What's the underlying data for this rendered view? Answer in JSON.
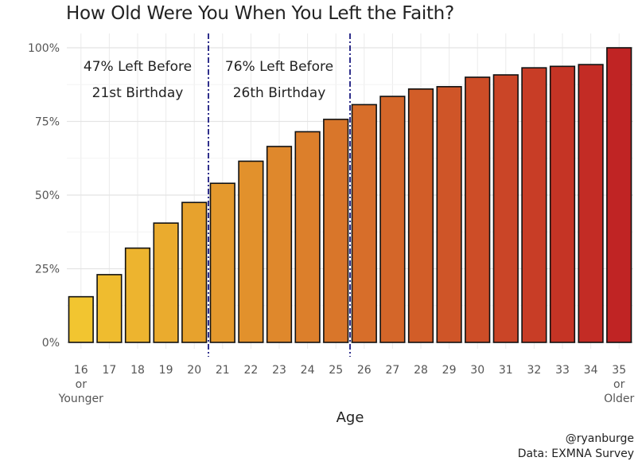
{
  "chart_data": {
    "type": "bar",
    "title": "How Old Were You When You Left the Faith?",
    "xlabel": "Age",
    "ylabel": "",
    "ylim": [
      0,
      1
    ],
    "yticks": [
      {
        "value": 0,
        "label": "0%"
      },
      {
        "value": 0.25,
        "label": "25%"
      },
      {
        "value": 0.5,
        "label": "50%"
      },
      {
        "value": 0.75,
        "label": "75%"
      },
      {
        "value": 1.0,
        "label": "100%"
      }
    ],
    "categories": [
      [
        "16",
        "or",
        "Younger"
      ],
      [
        "17"
      ],
      [
        "18"
      ],
      [
        "19"
      ],
      [
        "20"
      ],
      [
        "21"
      ],
      [
        "22"
      ],
      [
        "23"
      ],
      [
        "24"
      ],
      [
        "25"
      ],
      [
        "26"
      ],
      [
        "27"
      ],
      [
        "28"
      ],
      [
        "29"
      ],
      [
        "30"
      ],
      [
        "31"
      ],
      [
        "32"
      ],
      [
        "33"
      ],
      [
        "34"
      ],
      [
        "35",
        "or",
        "Older"
      ]
    ],
    "values": [
      0.155,
      0.23,
      0.32,
      0.405,
      0.475,
      0.54,
      0.615,
      0.665,
      0.715,
      0.757,
      0.807,
      0.835,
      0.86,
      0.868,
      0.9,
      0.908,
      0.932,
      0.937,
      0.943,
      1.0
    ],
    "color_low": "#F2C530",
    "color_mid": "#D8722A",
    "color_high": "#C02424",
    "reference_lines": [
      {
        "after_index": 4,
        "label": [
          "47% Left Before",
          "21st Birthday"
        ]
      },
      {
        "after_index": 9,
        "label": [
          "76% Left Before",
          "26th Birthday"
        ]
      }
    ],
    "grid": true
  },
  "credits": {
    "author": "@ryanburge",
    "source": "Data: EXMNA Survey"
  }
}
